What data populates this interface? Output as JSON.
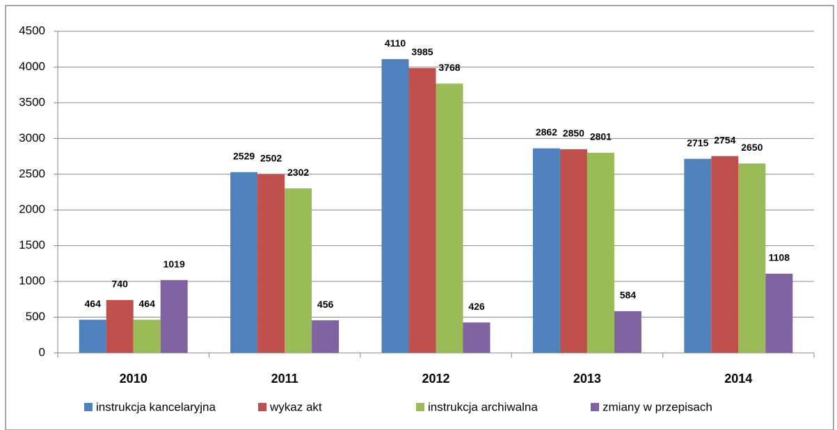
{
  "chart_data": {
    "type": "bar",
    "categories": [
      "2010",
      "2011",
      "2012",
      "2013",
      "2014"
    ],
    "series": [
      {
        "name": "instrukcja kancelaryjna",
        "color": "#4f81bd",
        "values": [
          464,
          2529,
          4110,
          2862,
          2715
        ]
      },
      {
        "name": "wykaz akt",
        "color": "#c0504d",
        "values": [
          740,
          2502,
          3985,
          2850,
          2754
        ]
      },
      {
        "name": "instrukcja archiwalna",
        "color": "#9bbb59",
        "values": [
          464,
          2302,
          3768,
          2801,
          2650
        ]
      },
      {
        "name": "zmiany w przepisach",
        "color": "#8064a2",
        "values": [
          1019,
          456,
          426,
          584,
          1108
        ]
      }
    ],
    "ylim": [
      0,
      4500
    ],
    "yticks": [
      0,
      500,
      1000,
      1500,
      2000,
      2500,
      3000,
      3500,
      4000,
      4500
    ],
    "grid": true,
    "legend": "bottom"
  }
}
